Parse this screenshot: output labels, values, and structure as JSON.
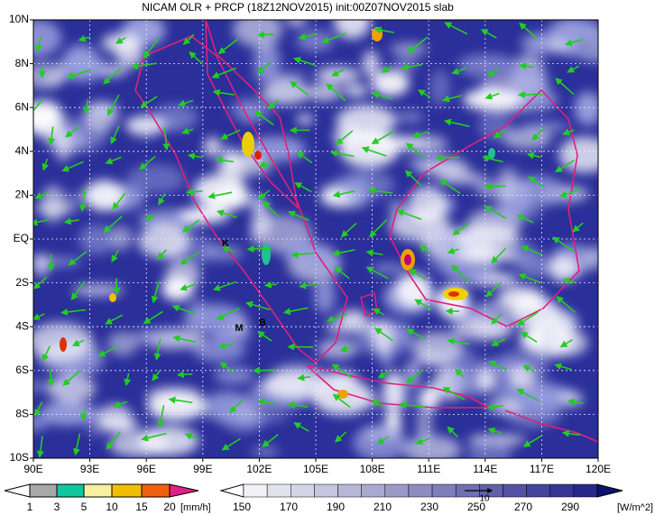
{
  "title": "NICAM OLR + PRCP (18Z12NOV2015) init:00Z07NOV2015 slab",
  "lat_labels": [
    "10N",
    "8N",
    "6N",
    "4N",
    "2N",
    "EQ",
    "2S",
    "4S",
    "6S",
    "8S",
    "10S"
  ],
  "lon_labels": [
    "90E",
    "93E",
    "96E",
    "99E",
    "102E",
    "105E",
    "108E",
    "111E",
    "114E",
    "117E",
    "120E"
  ],
  "markers": [
    "K",
    "M",
    "B"
  ],
  "vector_reference": "10",
  "precip_colorbar": {
    "labels": [
      "1",
      "3",
      "5",
      "10",
      "15",
      "20"
    ],
    "unit": "[mm/h]"
  },
  "olr_colorbar": {
    "labels": [
      "150",
      "170",
      "190",
      "210",
      "230",
      "250",
      "270",
      "290"
    ],
    "unit": "[W/m^2]"
  }
}
